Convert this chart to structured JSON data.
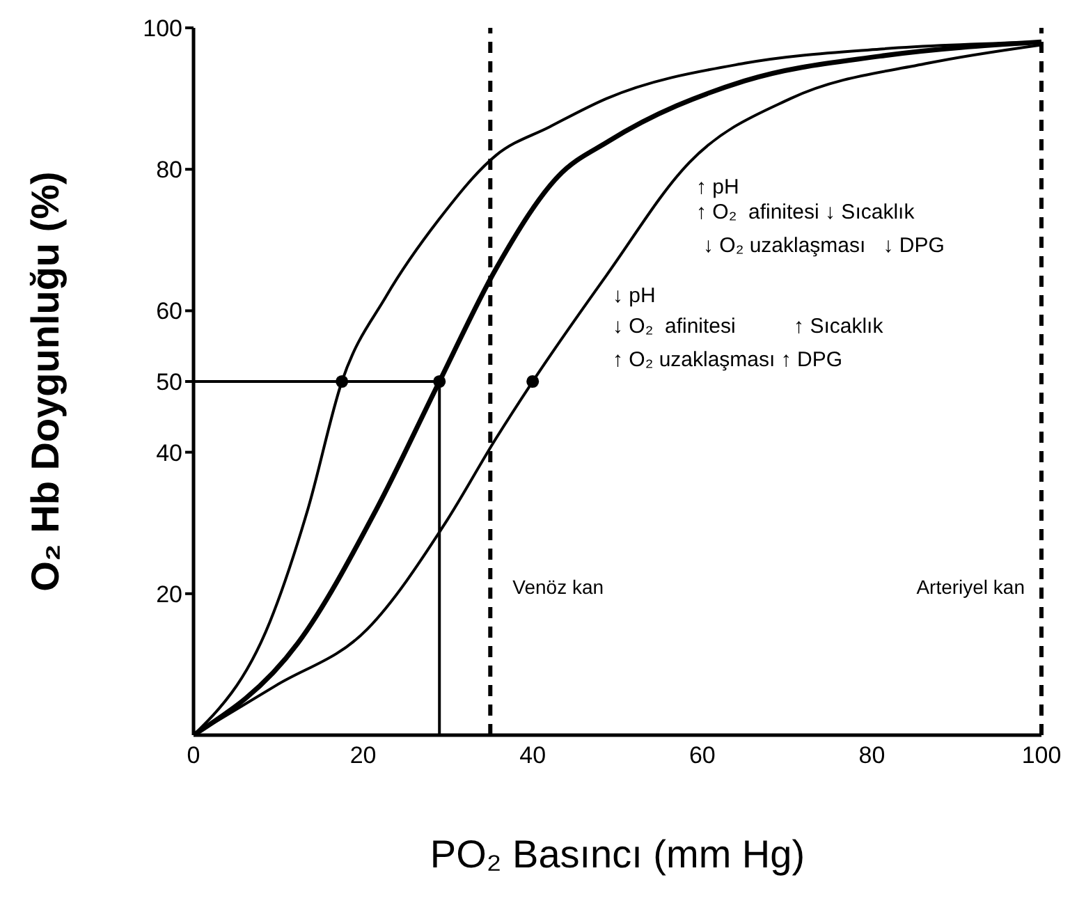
{
  "chart_data": {
    "type": "line",
    "xlabel": "PO₂ Basıncı (mm Hg)",
    "ylabel": "O₂ Hb Doygunluğu (%)",
    "xlim": [
      0,
      100
    ],
    "xticks": [
      0,
      20,
      40,
      60,
      80,
      100
    ],
    "ylim": [
      0,
      100
    ],
    "yticks": [
      20,
      40,
      50,
      60,
      80,
      100
    ],
    "grid": false,
    "legend": false,
    "marker": "none",
    "line_style": "solid",
    "series": [
      {
        "type": "line",
        "color": "#000000",
        "x": [
          0,
          9,
          13.5,
          17.5,
          22.7,
          29,
          35.7,
          42,
          48.7,
          65,
          81,
          100
        ],
        "values": [
          0,
          16,
          32,
          50,
          62,
          73,
          82,
          86,
          90,
          95,
          97,
          98
        ]
      },
      {
        "type": "line",
        "color": "#000000",
        "x": [
          0,
          12.3,
          21.6,
          29,
          35.7,
          43,
          49,
          65,
          81,
          100
        ],
        "values": [
          0,
          13,
          32,
          50,
          66,
          79,
          84,
          92.5,
          96,
          98
        ]
      },
      {
        "type": "line",
        "color": "#000000",
        "x": [
          0,
          9.7,
          20.5,
          29.7,
          35.7,
          40,
          48.7,
          58.5,
          70.4,
          86.6,
          100
        ],
        "values": [
          0,
          7,
          15,
          30,
          42,
          50,
          65,
          81,
          90,
          95,
          97.6
        ]
      },
      {
        "type": "line",
        "color": "#000000",
        "x": [
          0,
          29,
          29
        ],
        "values": [
          50,
          50,
          0
        ]
      },
      {
        "type": "scatter",
        "color": "#000000",
        "marker": "circle",
        "x": [
          17.5,
          29,
          40
        ],
        "values": [
          50,
          50,
          50
        ]
      }
    ],
    "ref_lines": [
      {
        "axis": "x",
        "value": 35,
        "label": "Venöz kan",
        "color": "#000000",
        "line_style": "dashed"
      },
      {
        "axis": "x",
        "value": 100,
        "label": "Arteriyel kan",
        "color": "#000000",
        "line_style": "dashed"
      }
    ],
    "annotations": [
      "↑ pH",
      "↑ O₂  afinitesi ↓ Sıcaklık",
      "↓ O₂ uzaklaşması   ↓ DPG",
      "↓ pH",
      "↓ O₂  afinitesi          ↑ Sıcaklık",
      "↑ O₂ uzaklaşması ↑ DPG"
    ]
  }
}
